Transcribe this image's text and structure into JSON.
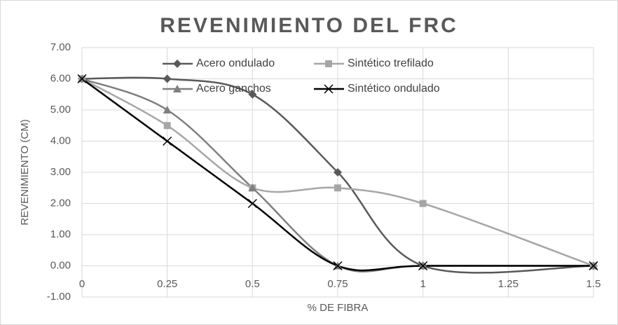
{
  "chart_data": {
    "type": "line",
    "title": "REVENIMIENTO  DEL FRC",
    "x_label": "% DE FIBRA",
    "y_label": "REVENIMIENTO  (CM)",
    "x": [
      0,
      0.25,
      0.5,
      0.75,
      1,
      1.5
    ],
    "series": [
      {
        "name": "Acero ondulado",
        "color": "#595959",
        "marker": "diamond",
        "values": [
          6,
          6,
          5.5,
          3,
          0,
          0
        ]
      },
      {
        "name": "Sintético trefilado",
        "color": "#a6a6a6",
        "marker": "square",
        "values": [
          6,
          4.5,
          2.5,
          2.5,
          2,
          0
        ]
      },
      {
        "name": "Acero ganchos",
        "color": "#7f7f7f",
        "marker": "triangle",
        "values": [
          6,
          5,
          2.5,
          0,
          0,
          0
        ]
      },
      {
        "name": "Sintético ondulado",
        "color": "#000000",
        "marker": "x",
        "values": [
          6,
          4,
          2,
          0,
          0,
          0
        ]
      }
    ],
    "smooth": true,
    "xlim": [
      0,
      1.5
    ],
    "xticks": [
      0,
      0.25,
      0.5,
      0.75,
      1,
      1.25,
      1.5
    ],
    "ylim": [
      -1,
      7
    ],
    "yticks": [
      {
        "value": -1,
        "label": "-1.00"
      },
      {
        "value": 0,
        "label": "0.00"
      },
      {
        "value": 1,
        "label": "1.00"
      },
      {
        "value": 2,
        "label": "2.00"
      },
      {
        "value": 3,
        "label": "3.00"
      },
      {
        "value": 4,
        "label": "4.00"
      },
      {
        "value": 5,
        "label": "5.00"
      },
      {
        "value": 6,
        "label": "6.00"
      },
      {
        "value": 7,
        "label": "7.00"
      }
    ],
    "grid": true
  }
}
